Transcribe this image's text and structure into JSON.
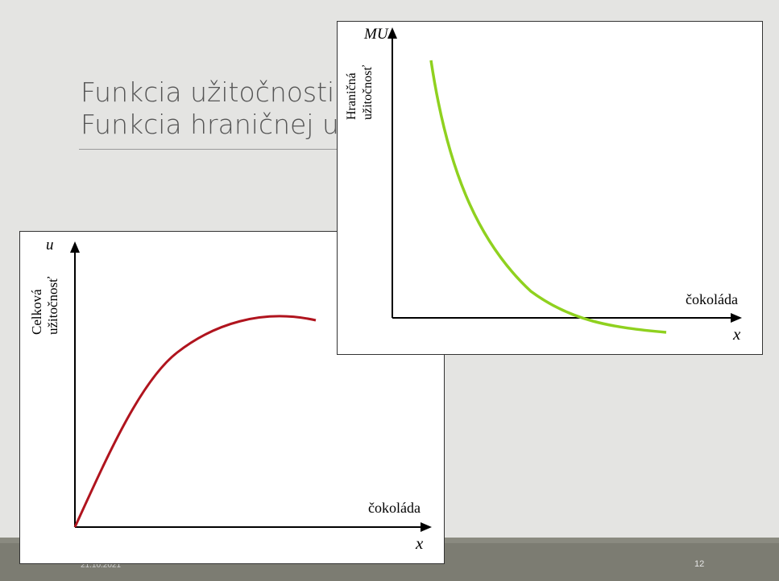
{
  "slide": {
    "title_line1": "Funkcia užitočnosti",
    "title_line2": "Funkcia hraničnej u",
    "footer_date": "21.10.2021",
    "page_number": "12"
  },
  "left_panel": {
    "y_var": "u",
    "y_label_line1": "Celková",
    "y_label_line2": "užitočnosť",
    "x_label": "čokoláda",
    "x_var": "x",
    "curve_color": "#b0141e"
  },
  "right_panel": {
    "y_var": "MU",
    "y_label_line1": "Hraničná",
    "y_label_line2": "užitočnosť",
    "x_label": "čokoláda",
    "x_var": "x",
    "curve_color": "#8fd11f"
  }
}
